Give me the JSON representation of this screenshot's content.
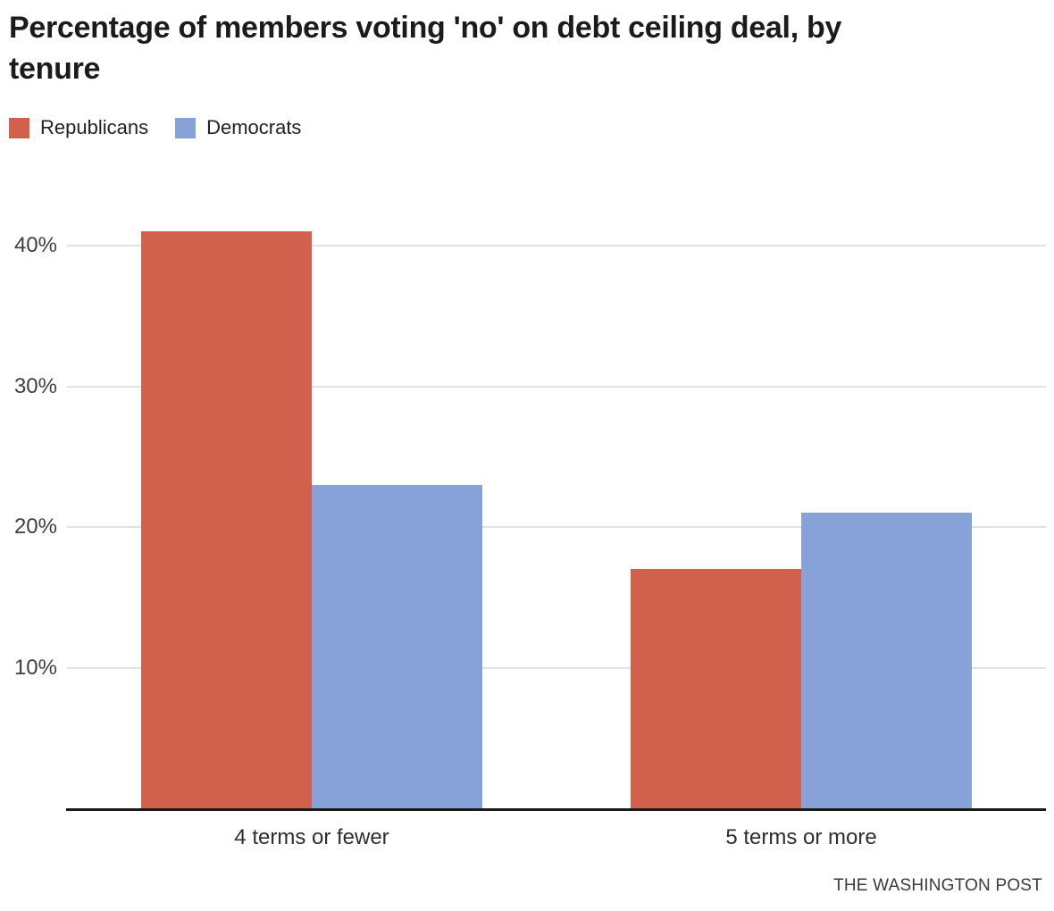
{
  "header": {
    "title": "Percentage of members voting 'no' on debt ceiling deal, by tenure",
    "title_lines": [
      "Percentage of members voting 'no' on debt ceiling deal, by",
      "tenure"
    ]
  },
  "legend": {
    "items": [
      {
        "label": "Republicans",
        "color": "#d1604d"
      },
      {
        "label": "Democrats",
        "color": "#87a2d8"
      }
    ]
  },
  "footer": {
    "credit": "THE WASHINGTON POST"
  },
  "colors": {
    "republican_red": "#d1604d",
    "democrat_blue": "#87a2d8",
    "gridline_gray": "#e2e2e2",
    "axis_black": "#1a1a1a"
  },
  "chart_data": {
    "type": "bar",
    "title": "Percentage of members voting 'no' on debt ceiling deal, by tenure",
    "categories": [
      "4 terms or fewer",
      "5 terms or more"
    ],
    "series": [
      {
        "name": "Republicans",
        "color": "#d1604d",
        "values": [
          41,
          17
        ]
      },
      {
        "name": "Democrats",
        "color": "#87a2d8",
        "values": [
          23,
          21
        ]
      }
    ],
    "y_ticks": [
      10,
      20,
      30,
      40
    ],
    "y_tick_suffix": "%",
    "ylim": [
      0,
      41
    ],
    "xlabel": "",
    "ylabel": "",
    "grid": true,
    "legend_position": "top-left",
    "source_label": "THE WASHINGTON POST"
  }
}
